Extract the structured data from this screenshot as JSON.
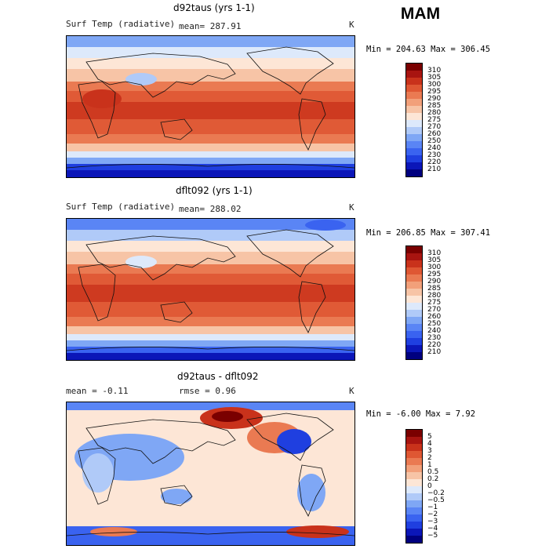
{
  "season": "MAM",
  "units": "K",
  "chart_data": [
    {
      "type": "heatmap",
      "title": "d92taus (yrs 1-1)",
      "variable": "Surf Temp (radiative)",
      "mean_text": "mean=  287.91",
      "units": "K",
      "min_max_text": "Min = 204.63 Max = 306.45",
      "min": 204.63,
      "max": 306.45,
      "colorbar_levels": [
        "210",
        "220",
        "230",
        "240",
        "250",
        "260",
        "270",
        "275",
        "280",
        "285",
        "290",
        "295",
        "300",
        "305",
        "310"
      ],
      "colorbar_colors": [
        "#00007f",
        "#0b16b8",
        "#1f3fe0",
        "#3a63f0",
        "#5a85f5",
        "#7fa7f5",
        "#b0caf8",
        "#dde9fb",
        "#fde6d6",
        "#f7c4a6",
        "#f2a07a",
        "#ea7a52",
        "#df5733",
        "#c9321b",
        "#a81410",
        "#7a0000"
      ]
    },
    {
      "type": "heatmap",
      "title": "dflt092 (yrs 1-1)",
      "variable": "Surf Temp (radiative)",
      "mean_text": "mean=  288.02",
      "units": "K",
      "min_max_text": "Min = 206.85 Max = 307.41",
      "min": 206.85,
      "max": 307.41,
      "colorbar_levels": [
        "210",
        "220",
        "230",
        "240",
        "250",
        "260",
        "270",
        "275",
        "280",
        "285",
        "290",
        "295",
        "300",
        "305",
        "310"
      ],
      "colorbar_colors": [
        "#00007f",
        "#0b16b8",
        "#1f3fe0",
        "#3a63f0",
        "#5a85f5",
        "#7fa7f5",
        "#b0caf8",
        "#dde9fb",
        "#fde6d6",
        "#f7c4a6",
        "#f2a07a",
        "#ea7a52",
        "#df5733",
        "#c9321b",
        "#a81410",
        "#7a0000"
      ]
    },
    {
      "type": "heatmap",
      "title": "d92taus - dflt092",
      "mean_text": "mean =   -0.11",
      "rmse_text": "rmse =    0.96",
      "units": "K",
      "min_max_text": "Min =  -6.00 Max =   7.92",
      "min": -6.0,
      "max": 7.92,
      "colorbar_levels": [
        "−5",
        "−4",
        "−3",
        "−2",
        "−1",
        "−0.5",
        "−0.2",
        "0",
        "0.2",
        "0.5",
        "1",
        "2",
        "3",
        "4",
        "5"
      ],
      "colorbar_colors": [
        "#00007f",
        "#0b16b8",
        "#1f3fe0",
        "#3a63f0",
        "#5a85f5",
        "#7fa7f5",
        "#b0caf8",
        "#dde9fb",
        "#fde6d6",
        "#f7c4a6",
        "#f2a07a",
        "#ea7a52",
        "#df5733",
        "#c9321b",
        "#a81410",
        "#7a0000"
      ]
    }
  ]
}
